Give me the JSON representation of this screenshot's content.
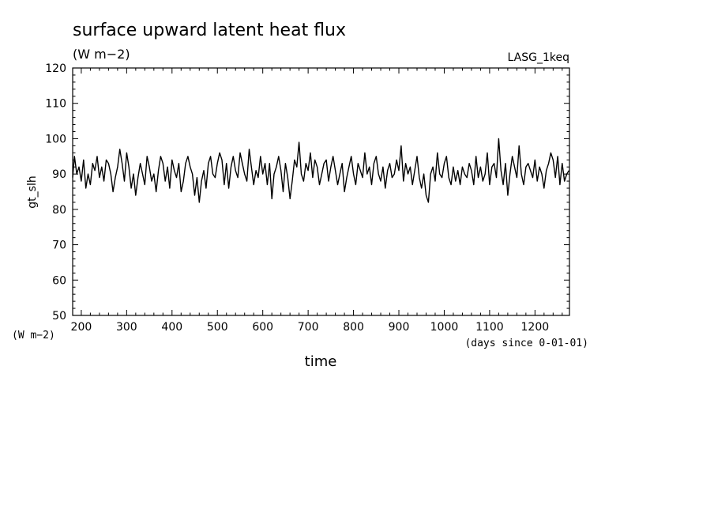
{
  "chart_data": {
    "type": "line",
    "title": "surface upward latent heat flux",
    "units": "(W m−2)",
    "run_label": "LASG_1keq",
    "ylabel": "gt_slh",
    "yunits_label": "(W m−2)",
    "xlabel": "time",
    "xunits_label": "(days since 0-01-01)",
    "xlim": [
      181,
      1276
    ],
    "ylim": [
      50,
      120
    ],
    "xticks": [
      200,
      300,
      400,
      500,
      600,
      700,
      800,
      900,
      1000,
      1100,
      1200
    ],
    "yticks": [
      50,
      60,
      70,
      80,
      90,
      100,
      110,
      120
    ],
    "grid": false,
    "series": [
      {
        "x": [
          181,
          185,
          190,
          195,
          200,
          205,
          210,
          215,
          220,
          225,
          230,
          235,
          240,
          245,
          250,
          255,
          260,
          265,
          270,
          275,
          280,
          285,
          290,
          295,
          300,
          305,
          310,
          315,
          320,
          325,
          330,
          335,
          340,
          345,
          350,
          355,
          360,
          365,
          370,
          375,
          380,
          385,
          390,
          395,
          400,
          405,
          410,
          415,
          420,
          425,
          430,
          435,
          440,
          445,
          450,
          455,
          460,
          465,
          470,
          475,
          480,
          485,
          490,
          495,
          500,
          505,
          510,
          515,
          520,
          525,
          530,
          535,
          540,
          545,
          550,
          555,
          560,
          565,
          570,
          575,
          580,
          585,
          590,
          595,
          600,
          605,
          610,
          615,
          620,
          625,
          630,
          635,
          640,
          645,
          650,
          655,
          660,
          665,
          670,
          675,
          680,
          685,
          690,
          695,
          700,
          705,
          710,
          715,
          720,
          725,
          730,
          735,
          740,
          745,
          750,
          755,
          760,
          765,
          770,
          775,
          780,
          785,
          790,
          795,
          800,
          805,
          810,
          815,
          820,
          825,
          830,
          835,
          840,
          845,
          850,
          855,
          860,
          865,
          870,
          875,
          880,
          885,
          890,
          895,
          900,
          905,
          910,
          915,
          920,
          925,
          930,
          935,
          940,
          945,
          950,
          955,
          960,
          965,
          970,
          975,
          980,
          985,
          990,
          995,
          1000,
          1005,
          1010,
          1015,
          1020,
          1025,
          1030,
          1035,
          1040,
          1045,
          1050,
          1055,
          1060,
          1065,
          1070,
          1075,
          1080,
          1085,
          1090,
          1095,
          1100,
          1105,
          1110,
          1115,
          1120,
          1125,
          1130,
          1135,
          1140,
          1145,
          1150,
          1155,
          1160,
          1165,
          1170,
          1175,
          1180,
          1185,
          1190,
          1195,
          1200,
          1205,
          1210,
          1215,
          1220,
          1225,
          1230,
          1235,
          1240,
          1245,
          1250,
          1255,
          1260,
          1265,
          1270,
          1275
        ],
        "y": [
          89,
          95,
          90,
          92,
          88,
          94,
          86,
          90,
          87,
          93,
          91,
          95,
          89,
          92,
          88,
          94,
          93,
          90,
          85,
          89,
          92,
          97,
          93,
          88,
          96,
          92,
          86,
          90,
          84,
          89,
          93,
          90,
          87,
          95,
          92,
          88,
          90,
          85,
          91,
          95,
          93,
          88,
          92,
          86,
          94,
          91,
          89,
          93,
          85,
          88,
          93,
          95,
          92,
          90,
          84,
          89,
          82,
          88,
          91,
          86,
          93,
          95,
          90,
          89,
          93,
          96,
          94,
          87,
          93,
          86,
          92,
          95,
          91,
          89,
          96,
          93,
          90,
          88,
          97,
          92,
          87,
          91,
          89,
          95,
          90,
          93,
          87,
          93,
          83,
          90,
          92,
          95,
          91,
          85,
          93,
          89,
          83,
          88,
          94,
          92,
          99,
          90,
          88,
          93,
          91,
          96,
          89,
          94,
          92,
          87,
          90,
          93,
          94,
          88,
          92,
          95,
          91,
          87,
          90,
          93,
          85,
          89,
          92,
          95,
          90,
          87,
          93,
          91,
          89,
          96,
          90,
          92,
          87,
          93,
          95,
          90,
          88,
          92,
          86,
          91,
          93,
          89,
          90,
          94,
          91,
          98,
          88,
          93,
          90,
          92,
          87,
          91,
          95,
          89,
          86,
          90,
          84,
          82,
          90,
          92,
          88,
          96,
          90,
          89,
          93,
          95,
          89,
          87,
          92,
          88,
          91,
          87,
          92,
          90,
          89,
          93,
          91,
          87,
          95,
          89,
          92,
          88,
          90,
          96,
          87,
          92,
          93,
          89,
          100,
          91,
          87,
          93,
          84,
          90,
          95,
          92,
          89,
          98,
          90,
          87,
          92,
          93,
          91,
          89,
          94,
          88,
          92,
          90,
          86,
          91,
          93,
          96,
          94,
          89,
          95,
          87,
          93,
          88,
          90,
          91
        ]
      }
    ]
  }
}
